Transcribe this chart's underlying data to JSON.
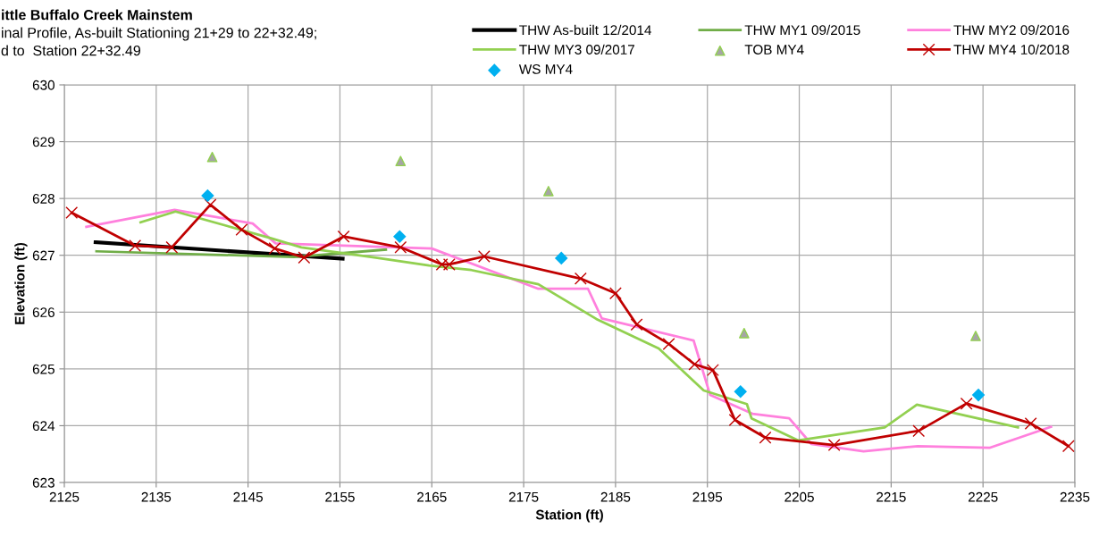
{
  "chart_data": {
    "type": "line",
    "title": "ittle Buffalo Creek Mainstem",
    "subtitle": "inal Profile, As-built Stationing 21+29 to 22+32.49;",
    "annotations": [
      "d to  Station 22+32.49"
    ],
    "xlabel": "Station (ft)",
    "ylabel": "Elevation (ft)",
    "xlim": [
      2125,
      2235
    ],
    "xticks": [
      2125,
      2135,
      2145,
      2155,
      2165,
      2175,
      2185,
      2195,
      2205,
      2215,
      2225,
      2235
    ],
    "ylim": [
      623,
      630
    ],
    "yticks": [
      623,
      624,
      625,
      626,
      627,
      628,
      629,
      630
    ],
    "grid": true,
    "legend": "top",
    "series": [
      {
        "name": "THW As-built 12/2014",
        "color": "#000000",
        "marker": "none",
        "x": [
          2128.4,
          2155.3
        ],
        "values": [
          627.23,
          626.94
        ]
      },
      {
        "name": "THW MY1 09/2015",
        "color": "#70ad47",
        "marker": "none",
        "x": [
          2128.5,
          2150,
          2160
        ],
        "values": [
          627.07,
          626.97,
          627.1
        ]
      },
      {
        "name": "THW MY2 09/2016",
        "color": "#ff80dd",
        "marker": "none",
        "x": [
          2127.4,
          2137.0,
          2145.5,
          2148.0,
          2165.0,
          2176.6,
          2182.0,
          2183.5,
          2193.5,
          2195.3,
          2199.9,
          2203.9,
          2206.3,
          2212.0,
          2217.9,
          2225.7,
          2232.4
        ],
        "values": [
          627.5,
          627.8,
          627.56,
          627.21,
          627.12,
          626.41,
          626.41,
          625.89,
          625.5,
          624.54,
          624.21,
          624.13,
          623.68,
          623.55,
          623.64,
          623.61,
          623.98
        ]
      },
      {
        "name": "THW MY3 09/2017",
        "color": "#92d050",
        "marker": "none",
        "x": [
          2133.3,
          2137.1,
          2147.5,
          2150.8,
          2158.9,
          2164.7,
          2169.3,
          2176.6,
          2182.9,
          2189.7,
          2194.6,
          2199.3,
          2199.8,
          2204.9,
          2214.3,
          2217.8,
          2228.8
        ],
        "values": [
          627.58,
          627.77,
          627.3,
          627.14,
          626.96,
          626.82,
          626.74,
          626.49,
          625.88,
          625.36,
          624.62,
          624.38,
          624.13,
          623.74,
          623.97,
          624.37,
          623.97
        ]
      },
      {
        "name": "TOB MY4",
        "type": "scatter",
        "color": "#a5a5a5",
        "marker": "triangle",
        "x": [
          2141.1,
          2161.6,
          2177.7,
          2199.0,
          2224.2
        ],
        "values": [
          628.73,
          628.66,
          628.13,
          625.63,
          625.58
        ]
      },
      {
        "name": "THW MY4 10/2018",
        "color": "#c00000",
        "marker": "cross",
        "x": [
          2125.8,
          2132.7,
          2136.7,
          2140.9,
          2144.3,
          2147.9,
          2151.1,
          2155.4,
          2161.6,
          2166.1,
          2166.9,
          2170.7,
          2181.2,
          2185.0,
          2187.3,
          2190.8,
          2193.6,
          2195.6,
          2198.0,
          2201.3,
          2208.8,
          2218.0,
          2223.2,
          2230.2,
          2234.3
        ],
        "values": [
          627.75,
          627.17,
          627.14,
          627.89,
          627.45,
          627.12,
          626.96,
          627.33,
          627.14,
          626.84,
          626.84,
          626.98,
          626.59,
          626.33,
          625.78,
          625.44,
          625.08,
          624.98,
          624.1,
          623.79,
          623.66,
          623.91,
          624.39,
          624.04,
          623.64
        ]
      },
      {
        "name": "WS MY4",
        "type": "scatter",
        "color": "#00b0f0",
        "marker": "diamond",
        "x": [
          2140.6,
          2161.5,
          2179.1,
          2198.6,
          2224.5
        ],
        "values": [
          628.05,
          627.33,
          626.95,
          624.6,
          624.54
        ]
      }
    ]
  }
}
